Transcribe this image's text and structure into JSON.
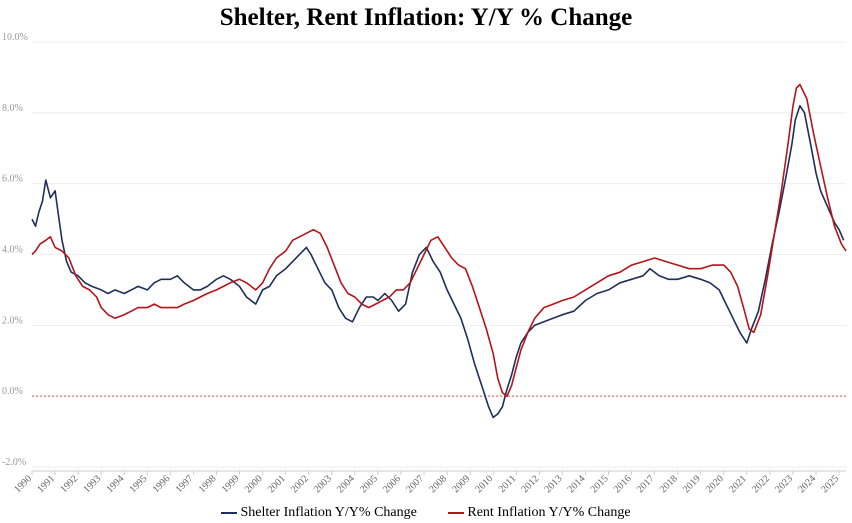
{
  "title": "Shelter, Rent Inflation: Y/Y % Change",
  "chart_data": {
    "type": "line",
    "title": "Shelter, Rent Inflation: Y/Y % Change",
    "xlabel": "",
    "ylabel": "",
    "xlim": [
      1990,
      2025.3
    ],
    "ylim": [
      -2.0,
      10.0
    ],
    "y_ticks": [
      "-2.0%",
      "0.0%",
      "2.0%",
      "4.0%",
      "6.0%",
      "8.0%",
      "10.0%"
    ],
    "x_ticks": [
      "1990",
      "1991",
      "1992",
      "1993",
      "1994",
      "1995",
      "1996",
      "1997",
      "1998",
      "1999",
      "2000",
      "2001",
      "2002",
      "2003",
      "2004",
      "2005",
      "2006",
      "2007",
      "2008",
      "2009",
      "2010",
      "2011",
      "2012",
      "2013",
      "2014",
      "2015",
      "2016",
      "2017",
      "2018",
      "2019",
      "2020",
      "2021",
      "2022",
      "2023",
      "2024",
      "2025"
    ],
    "grid": true,
    "reference_line": 0.0,
    "legend_position": "bottom",
    "series": [
      {
        "name": "Shelter Inflation Y/Y% Change",
        "color": "#1f2f5a",
        "x": [
          1990.0,
          1990.15,
          1990.3,
          1990.45,
          1990.6,
          1990.8,
          1991.0,
          1991.15,
          1991.3,
          1991.5,
          1991.7,
          1992.0,
          1992.3,
          1992.6,
          1993.0,
          1993.3,
          1993.6,
          1994.0,
          1994.3,
          1994.6,
          1995.0,
          1995.3,
          1995.6,
          1996.0,
          1996.3,
          1996.6,
          1997.0,
          1997.3,
          1997.6,
          1998.0,
          1998.3,
          1998.6,
          1999.0,
          1999.3,
          1999.7,
          2000.0,
          2000.3,
          2000.6,
          2001.0,
          2001.3,
          2001.6,
          2001.9,
          2002.1,
          2002.4,
          2002.7,
          2003.0,
          2003.3,
          2003.6,
          2003.9,
          2004.2,
          2004.5,
          2004.8,
          2005.0,
          2005.3,
          2005.6,
          2005.9,
          2006.2,
          2006.5,
          2006.8,
          2007.1,
          2007.4,
          2007.7,
          2008.0,
          2008.3,
          2008.6,
          2008.9,
          2009.2,
          2009.5,
          2009.8,
          2010.0,
          2010.2,
          2010.4,
          2010.6,
          2010.8,
          2011.0,
          2011.2,
          2011.5,
          2011.8,
          2012.2,
          2012.6,
          2013.0,
          2013.5,
          2014.0,
          2014.5,
          2015.0,
          2015.5,
          2016.0,
          2016.5,
          2016.8,
          2017.2,
          2017.6,
          2018.0,
          2018.5,
          2019.0,
          2019.4,
          2019.8,
          2020.1,
          2020.4,
          2020.7,
          2021.0,
          2021.2,
          2021.5,
          2021.8,
          2022.1,
          2022.4,
          2022.7,
          2022.95,
          2023.1,
          2023.3,
          2023.5,
          2023.8,
          2024.0,
          2024.2,
          2024.4,
          2024.6,
          2024.8,
          2025.0,
          2025.2
        ],
        "values": [
          5.0,
          4.8,
          5.2,
          5.5,
          6.1,
          5.6,
          5.8,
          5.1,
          4.4,
          3.8,
          3.5,
          3.4,
          3.2,
          3.1,
          3.0,
          2.9,
          3.0,
          2.9,
          3.0,
          3.1,
          3.0,
          3.2,
          3.3,
          3.3,
          3.4,
          3.2,
          3.0,
          3.0,
          3.1,
          3.3,
          3.4,
          3.3,
          3.1,
          2.8,
          2.6,
          3.0,
          3.1,
          3.4,
          3.6,
          3.8,
          4.0,
          4.2,
          4.0,
          3.6,
          3.2,
          3.0,
          2.5,
          2.2,
          2.1,
          2.5,
          2.8,
          2.8,
          2.7,
          2.9,
          2.7,
          2.4,
          2.6,
          3.5,
          4.0,
          4.2,
          3.8,
          3.5,
          3.0,
          2.6,
          2.2,
          1.6,
          0.9,
          0.3,
          -0.3,
          -0.6,
          -0.5,
          -0.3,
          0.2,
          0.6,
          1.1,
          1.5,
          1.8,
          2.0,
          2.1,
          2.2,
          2.3,
          2.4,
          2.7,
          2.9,
          3.0,
          3.2,
          3.3,
          3.4,
          3.6,
          3.4,
          3.3,
          3.3,
          3.4,
          3.3,
          3.2,
          3.0,
          2.6,
          2.2,
          1.8,
          1.5,
          1.9,
          2.4,
          3.3,
          4.3,
          5.2,
          6.2,
          7.1,
          7.8,
          8.2,
          8.0,
          7.0,
          6.3,
          5.8,
          5.5,
          5.2,
          4.9,
          4.7,
          4.4
        ]
      },
      {
        "name": "Rent Inflation Y/Y% Change",
        "color": "#b3151a",
        "x": [
          1990.0,
          1990.15,
          1990.35,
          1990.6,
          1990.8,
          1991.0,
          1991.3,
          1991.6,
          1991.9,
          1992.2,
          1992.5,
          1992.8,
          1993.0,
          1993.3,
          1993.6,
          1994.0,
          1994.3,
          1994.6,
          1995.0,
          1995.3,
          1995.6,
          1996.0,
          1996.3,
          1996.6,
          1997.0,
          1997.3,
          1997.6,
          1998.0,
          1998.3,
          1998.6,
          1999.0,
          1999.3,
          1999.7,
          2000.0,
          2000.3,
          2000.6,
          2001.0,
          2001.3,
          2001.6,
          2001.9,
          2002.2,
          2002.5,
          2002.8,
          2003.1,
          2003.4,
          2003.7,
          2004.0,
          2004.3,
          2004.6,
          2004.9,
          2005.2,
          2005.5,
          2005.8,
          2006.1,
          2006.4,
          2006.7,
          2007.0,
          2007.3,
          2007.6,
          2007.9,
          2008.2,
          2008.5,
          2008.8,
          2009.1,
          2009.4,
          2009.7,
          2010.0,
          2010.2,
          2010.4,
          2010.6,
          2010.8,
          2011.0,
          2011.2,
          2011.5,
          2011.8,
          2012.2,
          2012.6,
          2013.0,
          2013.5,
          2014.0,
          2014.5,
          2015.0,
          2015.5,
          2016.0,
          2016.5,
          2017.0,
          2017.5,
          2018.0,
          2018.5,
          2019.0,
          2019.5,
          2020.0,
          2020.3,
          2020.6,
          2020.9,
          2021.1,
          2021.3,
          2021.6,
          2021.9,
          2022.2,
          2022.5,
          2022.8,
          2023.0,
          2023.15,
          2023.3,
          2023.6,
          2023.9,
          2024.2,
          2024.5,
          2024.8,
          2025.1,
          2025.3
        ],
        "values": [
          4.0,
          4.1,
          4.3,
          4.4,
          4.5,
          4.2,
          4.1,
          3.9,
          3.4,
          3.1,
          3.0,
          2.8,
          2.5,
          2.3,
          2.2,
          2.3,
          2.4,
          2.5,
          2.5,
          2.6,
          2.5,
          2.5,
          2.5,
          2.6,
          2.7,
          2.8,
          2.9,
          3.0,
          3.1,
          3.2,
          3.3,
          3.2,
          3.0,
          3.2,
          3.6,
          3.9,
          4.1,
          4.4,
          4.5,
          4.6,
          4.7,
          4.6,
          4.2,
          3.7,
          3.2,
          2.9,
          2.8,
          2.6,
          2.5,
          2.6,
          2.7,
          2.8,
          3.0,
          3.0,
          3.2,
          3.6,
          4.0,
          4.4,
          4.5,
          4.2,
          3.9,
          3.7,
          3.6,
          3.1,
          2.5,
          1.9,
          1.2,
          0.5,
          0.1,
          0.0,
          0.3,
          0.8,
          1.3,
          1.8,
          2.2,
          2.5,
          2.6,
          2.7,
          2.8,
          3.0,
          3.2,
          3.4,
          3.5,
          3.7,
          3.8,
          3.9,
          3.8,
          3.7,
          3.6,
          3.6,
          3.7,
          3.7,
          3.5,
          3.1,
          2.4,
          1.9,
          1.8,
          2.3,
          3.4,
          4.6,
          5.8,
          7.2,
          8.2,
          8.7,
          8.8,
          8.4,
          7.4,
          6.5,
          5.6,
          4.8,
          4.3,
          4.1
        ]
      }
    ]
  }
}
